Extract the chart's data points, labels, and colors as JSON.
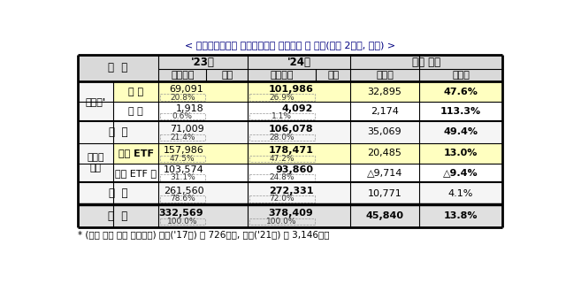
{
  "title": "< 한국예탁결제원 장외파생담보 보관금액 등 현황(최근 2개년, 억원) >",
  "footnote": "* (제도 시행 당시 담보금액) 변동('17년) 약 726억원, 개시('21년) 약 3,146억원",
  "rows": [
    {
      "cat1": "증거금'",
      "cat2": "개 시",
      "val23": "69,091",
      "pct23": "20.8%",
      "val24": "101,986",
      "pct24": "26.9%",
      "change": "32,895",
      "rate": "47.6%",
      "highlight": true,
      "is_subtotal": false,
      "is_total": false,
      "bold_rate": true
    },
    {
      "cat1": "",
      "cat2": "변 동",
      "val23": "1,918",
      "pct23": "0.6%",
      "val24": "4,092",
      "pct24": "1.1%",
      "change": "2,174",
      "rate": "113.3%",
      "highlight": false,
      "is_subtotal": false,
      "is_total": false,
      "bold_rate": true
    },
    {
      "cat1": "소 계",
      "cat2": "",
      "val23": "71,009",
      "pct23": "21.4%",
      "val24": "106,078",
      "pct24": "28.0%",
      "change": "35,069",
      "rate": "49.4%",
      "highlight": false,
      "is_subtotal": true,
      "is_total": false,
      "bold_rate": true
    },
    {
      "cat1": "증거금\n이외",
      "cat2": "합성 ETF",
      "val23": "157,986",
      "pct23": "47.5%",
      "val24": "178,471",
      "pct24": "47.2%",
      "change": "20,485",
      "rate": "13.0%",
      "highlight": true,
      "is_subtotal": false,
      "is_total": false,
      "bold_rate": true
    },
    {
      "cat1": "",
      "cat2": "합성 ETF 外",
      "val23": "103,574",
      "pct23": "31.1%",
      "val24": "93,860",
      "pct24": "24.8%",
      "change": "△9,714",
      "rate": "△9.4%",
      "highlight": false,
      "is_subtotal": false,
      "is_total": false,
      "bold_rate": true
    },
    {
      "cat1": "소 계",
      "cat2": "",
      "val23": "261,560",
      "pct23": "78.6%",
      "val24": "272,331",
      "pct24": "72.0%",
      "change": "10,771",
      "rate": "4.1%",
      "highlight": false,
      "is_subtotal": true,
      "is_total": false,
      "bold_rate": false
    },
    {
      "cat1": "합 계",
      "cat2": "",
      "val23": "332,569",
      "pct23": "100.0%",
      "val24": "378,409",
      "pct24": "100.0%",
      "change": "45,840",
      "rate": "13.8%",
      "highlight": false,
      "is_subtotal": false,
      "is_total": true,
      "bold_rate": true
    }
  ],
  "color_header_bg": "#d9d9d9",
  "color_highlight_bg": "#ffffc0",
  "color_subtotal_bg": "#f5f5f5",
  "color_total_bg": "#e0e0e0",
  "color_white": "#ffffff"
}
